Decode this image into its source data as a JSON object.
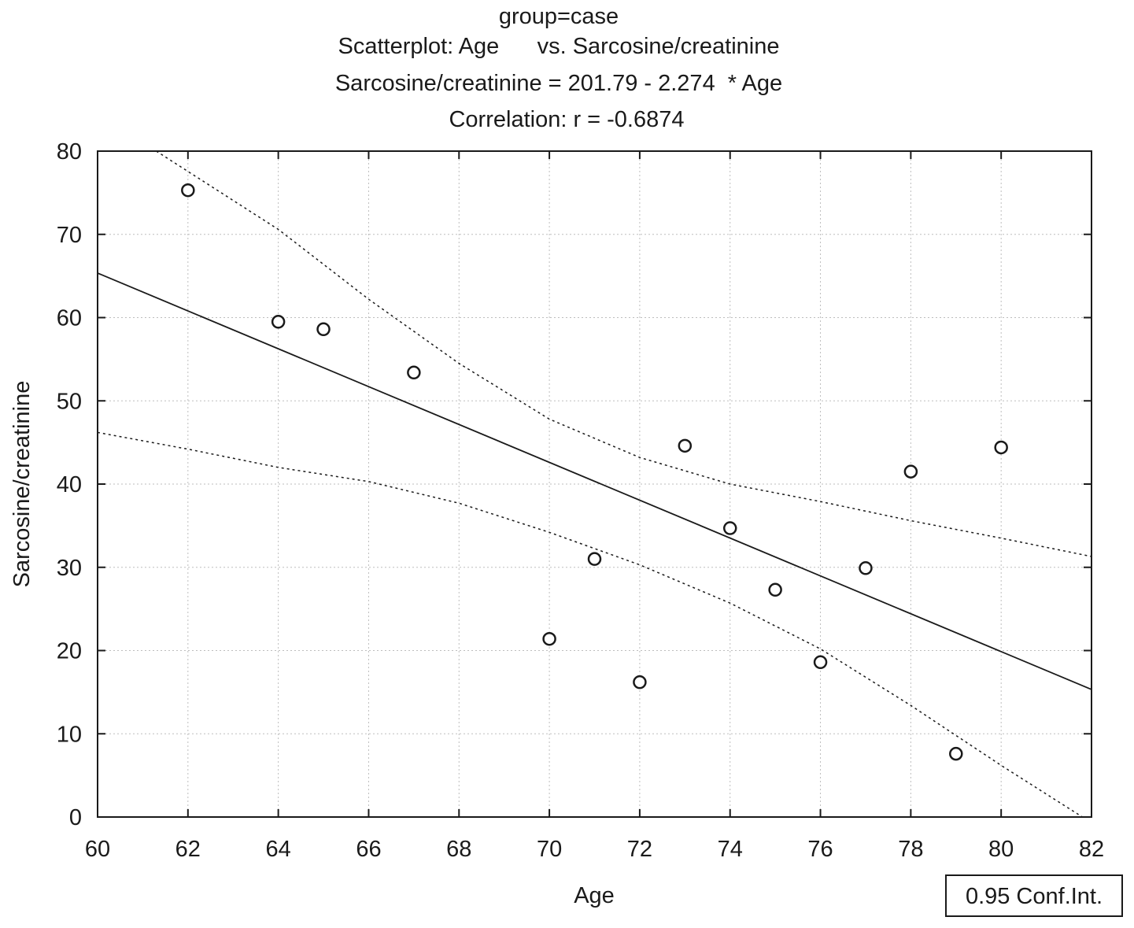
{
  "chart_data": {
    "type": "scatter",
    "title_lines": [
      "group=case",
      "Scatterplot: Age      vs. Sarcosine/creatinine",
      "Sarcosine/creatinine = 201.79 - 2.274  * Age",
      "Correlation: r = -0.6874"
    ],
    "xlabel": "Age",
    "ylabel": "Sarcosine/creatinine",
    "xlim": [
      60,
      82
    ],
    "ylim": [
      0,
      80
    ],
    "x_ticks": [
      60,
      62,
      64,
      66,
      68,
      70,
      72,
      74,
      76,
      78,
      80,
      82
    ],
    "y_ticks": [
      0,
      10,
      20,
      30,
      40,
      50,
      60,
      70,
      80
    ],
    "grid": true,
    "points": [
      {
        "x": 62,
        "y": 75.3
      },
      {
        "x": 64,
        "y": 59.5
      },
      {
        "x": 65,
        "y": 58.6
      },
      {
        "x": 67,
        "y": 53.4
      },
      {
        "x": 70,
        "y": 21.4
      },
      {
        "x": 71,
        "y": 31.0
      },
      {
        "x": 72,
        "y": 16.2
      },
      {
        "x": 73,
        "y": 44.6
      },
      {
        "x": 74,
        "y": 34.7
      },
      {
        "x": 75,
        "y": 27.3
      },
      {
        "x": 76,
        "y": 18.6
      },
      {
        "x": 77,
        "y": 29.9
      },
      {
        "x": 78,
        "y": 41.5
      },
      {
        "x": 79,
        "y": 7.6
      },
      {
        "x": 80,
        "y": 44.4
      }
    ],
    "regression": {
      "intercept": 201.79,
      "slope": -2.274
    },
    "confidence_band": {
      "upper": [
        [
          61.3,
          80
        ],
        [
          64,
          70.6
        ],
        [
          66,
          62.2
        ],
        [
          68,
          54.5
        ],
        [
          70,
          47.8
        ],
        [
          72,
          43.2
        ],
        [
          74,
          40.0
        ],
        [
          76,
          37.9
        ],
        [
          78,
          35.6
        ],
        [
          80,
          33.5
        ],
        [
          82,
          31.3
        ]
      ],
      "lower": [
        [
          60,
          46.2
        ],
        [
          62,
          44.2
        ],
        [
          64,
          42.0
        ],
        [
          66,
          40.3
        ],
        [
          68,
          37.7
        ],
        [
          70,
          34.2
        ],
        [
          72,
          30.3
        ],
        [
          74,
          25.7
        ],
        [
          76,
          20.2
        ],
        [
          78,
          13.4
        ],
        [
          80,
          6.2
        ],
        [
          81.8,
          0
        ]
      ]
    },
    "legend": {
      "label": "0.95 Conf.Int.",
      "position": "bottom-right"
    },
    "colors": {
      "marks": "#1a1a1a",
      "grid": "#bdbdbd",
      "background": "#ffffff"
    }
  }
}
